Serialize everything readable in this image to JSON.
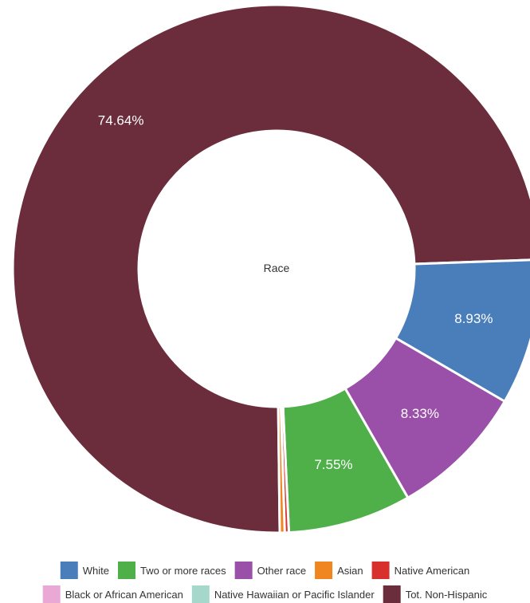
{
  "chart_data": {
    "type": "pie",
    "center_label": "Race",
    "categories": [
      "White",
      "Two or more races",
      "Other race",
      "Asian",
      "Native American",
      "Black or African American",
      "Native Hawaiian or Pacific Islander",
      "Tot. Non-Hispanic"
    ],
    "values": [
      8.93,
      7.55,
      8.33,
      0.3,
      0.25,
      0.0,
      0.0,
      74.64
    ],
    "value_labels": [
      "8.93%",
      "7.55%",
      "8.33%",
      "",
      "",
      "",
      "",
      "74.64%"
    ],
    "colors": [
      "#4a7ebb",
      "#4fb04a",
      "#9a4fa8",
      "#f0861f",
      "#d8302d",
      "#e9a8d5",
      "#a5d8cb",
      "#6b2c3c"
    ],
    "legend_position": "bottom"
  }
}
